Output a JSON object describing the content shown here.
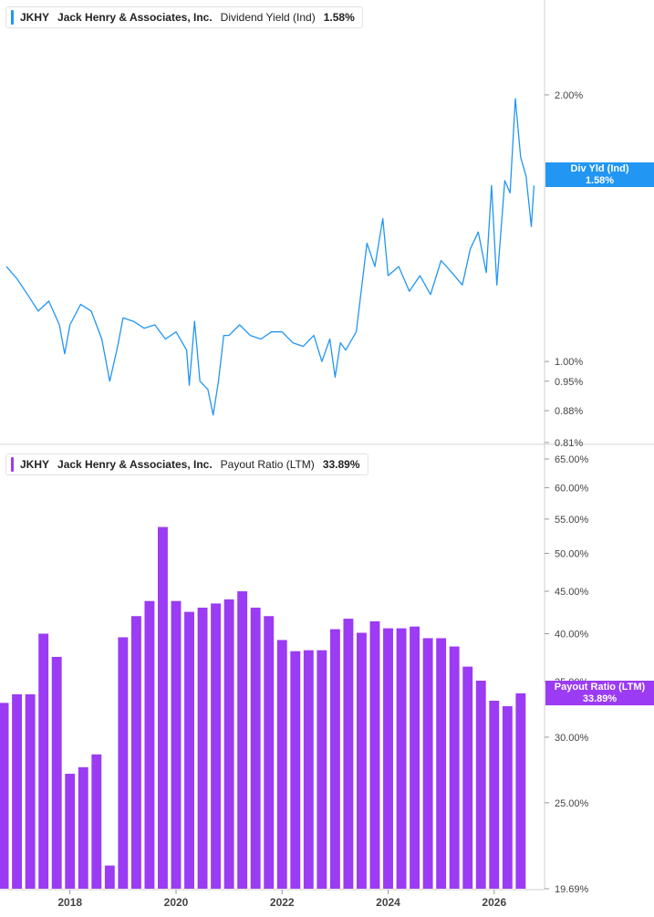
{
  "chart_data": [
    {
      "type": "line",
      "legend": {
        "ticker": "JKHY",
        "company": "Jack Henry & Associates, Inc.",
        "metric": "Dividend Yield (Ind)",
        "value": "1.58%"
      },
      "value_tag": {
        "label": "Div Yld (Ind)",
        "value": "1.58%"
      },
      "color": "#2196f3",
      "y_scale": "log",
      "ylim": [
        0.81,
        2.3
      ],
      "y_ticks": [
        {
          "value": 2.0,
          "label": "2.00%"
        },
        {
          "value": 1.0,
          "label": "1.00%"
        },
        {
          "value": 0.95,
          "label": "0.95%"
        },
        {
          "value": 0.88,
          "label": "0.88%"
        },
        {
          "value": 0.81,
          "label": "0.81%"
        }
      ],
      "x": [
        2016.8,
        2017.0,
        2017.2,
        2017.4,
        2017.6,
        2017.8,
        2017.9,
        2018.0,
        2018.2,
        2018.4,
        2018.6,
        2018.75,
        2018.9,
        2019.0,
        2019.2,
        2019.4,
        2019.6,
        2019.8,
        2020.0,
        2020.2,
        2020.25,
        2020.35,
        2020.45,
        2020.6,
        2020.7,
        2020.8,
        2020.9,
        2021.0,
        2021.2,
        2021.4,
        2021.6,
        2021.8,
        2022.0,
        2022.2,
        2022.4,
        2022.6,
        2022.75,
        2022.9,
        2023.0,
        2023.1,
        2023.2,
        2023.4,
        2023.6,
        2023.75,
        2023.9,
        2024.0,
        2024.2,
        2024.4,
        2024.6,
        2024.8,
        2025.0,
        2025.2,
        2025.4,
        2025.55,
        2025.7,
        2025.85,
        2025.95,
        2026.05,
        2026.2,
        2026.3,
        2026.4,
        2026.5,
        2026.6,
        2026.7,
        2026.75
      ],
      "values": [
        1.28,
        1.24,
        1.19,
        1.14,
        1.17,
        1.1,
        1.02,
        1.1,
        1.16,
        1.14,
        1.06,
        0.95,
        1.04,
        1.12,
        1.11,
        1.09,
        1.1,
        1.06,
        1.08,
        1.03,
        0.94,
        1.11,
        0.95,
        0.93,
        0.87,
        0.95,
        1.07,
        1.07,
        1.1,
        1.07,
        1.06,
        1.08,
        1.08,
        1.05,
        1.04,
        1.07,
        1.0,
        1.06,
        0.96,
        1.05,
        1.03,
        1.08,
        1.36,
        1.28,
        1.45,
        1.25,
        1.28,
        1.2,
        1.25,
        1.19,
        1.3,
        1.26,
        1.22,
        1.34,
        1.4,
        1.26,
        1.58,
        1.22,
        1.6,
        1.55,
        1.98,
        1.7,
        1.62,
        1.42,
        1.58
      ]
    },
    {
      "type": "bar",
      "legend": {
        "ticker": "JKHY",
        "company": "Jack Henry & Associates, Inc.",
        "metric": "Payout Ratio (LTM)",
        "value": "33.89%"
      },
      "value_tag": {
        "label": "Payout Ratio (LTM)",
        "value": "33.89%"
      },
      "color": "#9b3bf3",
      "y_scale": "log",
      "ylim": [
        19.69,
        65.0
      ],
      "y_ticks": [
        {
          "value": 65.0,
          "label": "65.00%"
        },
        {
          "value": 60.0,
          "label": "60.00%"
        },
        {
          "value": 55.0,
          "label": "55.00%"
        },
        {
          "value": 50.0,
          "label": "50.00%"
        },
        {
          "value": 45.0,
          "label": "45.00%"
        },
        {
          "value": 40.0,
          "label": "40.00%"
        },
        {
          "value": 35.0,
          "label": "35.00%"
        },
        {
          "value": 30.0,
          "label": "30.00%"
        },
        {
          "value": 25.0,
          "label": "25.00%"
        },
        {
          "value": 19.69,
          "label": "19.69%"
        }
      ],
      "x": [
        2016.75,
        2017.0,
        2017.25,
        2017.5,
        2017.75,
        2018.0,
        2018.25,
        2018.5,
        2018.75,
        2019.0,
        2019.25,
        2019.5,
        2019.75,
        2020.0,
        2020.25,
        2020.5,
        2020.75,
        2021.0,
        2021.25,
        2021.5,
        2021.75,
        2022.0,
        2022.25,
        2022.5,
        2022.75,
        2023.0,
        2023.25,
        2023.5,
        2023.75,
        2024.0,
        2024.25,
        2024.5,
        2024.75,
        2025.0,
        2025.25,
        2025.5,
        2025.75,
        2026.0,
        2026.25,
        2026.5
      ],
      "values": [
        33.0,
        33.8,
        33.8,
        40.0,
        37.5,
        27.1,
        27.6,
        28.6,
        21.0,
        39.6,
        42.0,
        43.8,
        53.8,
        43.8,
        42.5,
        43.0,
        43.5,
        44.0,
        45.0,
        43.0,
        42.0,
        39.3,
        38.1,
        38.2,
        38.2,
        40.5,
        41.7,
        40.1,
        41.4,
        40.6,
        40.6,
        40.8,
        39.5,
        39.5,
        38.6,
        36.5,
        35.1,
        33.2,
        32.7,
        33.89
      ]
    }
  ],
  "x_axis": {
    "xlim": [
      2016.68,
      2026.95
    ],
    "ticks": [
      {
        "value": 2018,
        "label": "2018"
      },
      {
        "value": 2020,
        "label": "2020"
      },
      {
        "value": 2022,
        "label": "2022"
      },
      {
        "value": 2024,
        "label": "2024"
      },
      {
        "value": 2026,
        "label": "2026"
      }
    ]
  }
}
